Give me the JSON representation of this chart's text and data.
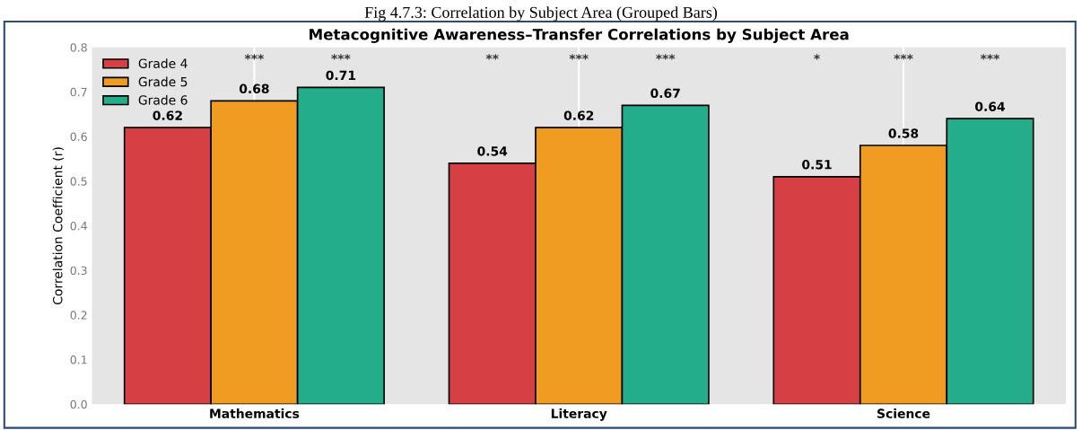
{
  "chart_data": {
    "type": "bar",
    "title": "Metacognitive Awareness–Transfer Correlations by Subject Area",
    "subtitle": "Fig 4.7.3: Correlation by Subject Area (Grouped Bars)",
    "ylabel": "Correlation Coefficient (r)",
    "categories": [
      "Mathematics",
      "Literacy",
      "Science"
    ],
    "series": [
      {
        "name": "Grade 4",
        "color": "#d64045",
        "values": [
          0.62,
          0.54,
          0.51
        ]
      },
      {
        "name": "Grade 5",
        "color": "#f09c22",
        "values": [
          0.68,
          0.62,
          0.58
        ]
      },
      {
        "name": "Grade 6",
        "color": "#24ad8a",
        "values": [
          0.71,
          0.67,
          0.64
        ]
      }
    ],
    "annotations": [
      "***",
      "***",
      "**",
      "***",
      "***",
      "*",
      "***",
      "***"
    ],
    "ylim": [
      0,
      0.8
    ],
    "yticks": [
      {
        "value": 0,
        "label": "0.0"
      },
      0.1,
      0.2,
      0.3,
      0.4,
      0.5,
      0.6,
      0.7,
      0.8
    ],
    "data_labels": true,
    "grid": "x",
    "legend": "top left"
  }
}
